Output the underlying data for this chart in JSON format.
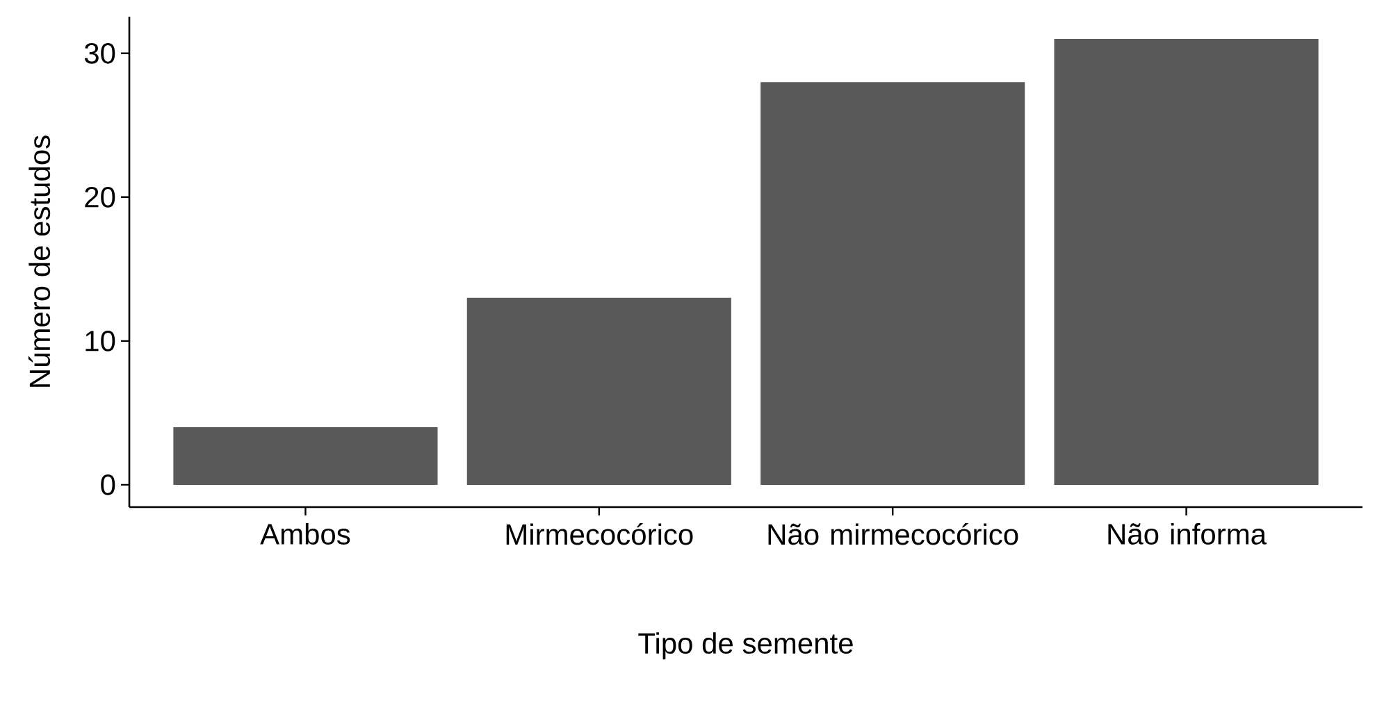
{
  "chart_data": {
    "type": "bar",
    "xlabel": "Tipo de semente",
    "ylabel": "Número de estudos",
    "categories": [
      "Ambos",
      "Mirmecocórico",
      "Não mirmecocórico",
      "Não informa"
    ],
    "values": [
      4,
      13,
      28,
      31
    ],
    "color": "#595959",
    "ylim": [
      -1.55,
      32.55
    ],
    "yticks": [
      0,
      10,
      20,
      30
    ],
    "grid": false
  }
}
